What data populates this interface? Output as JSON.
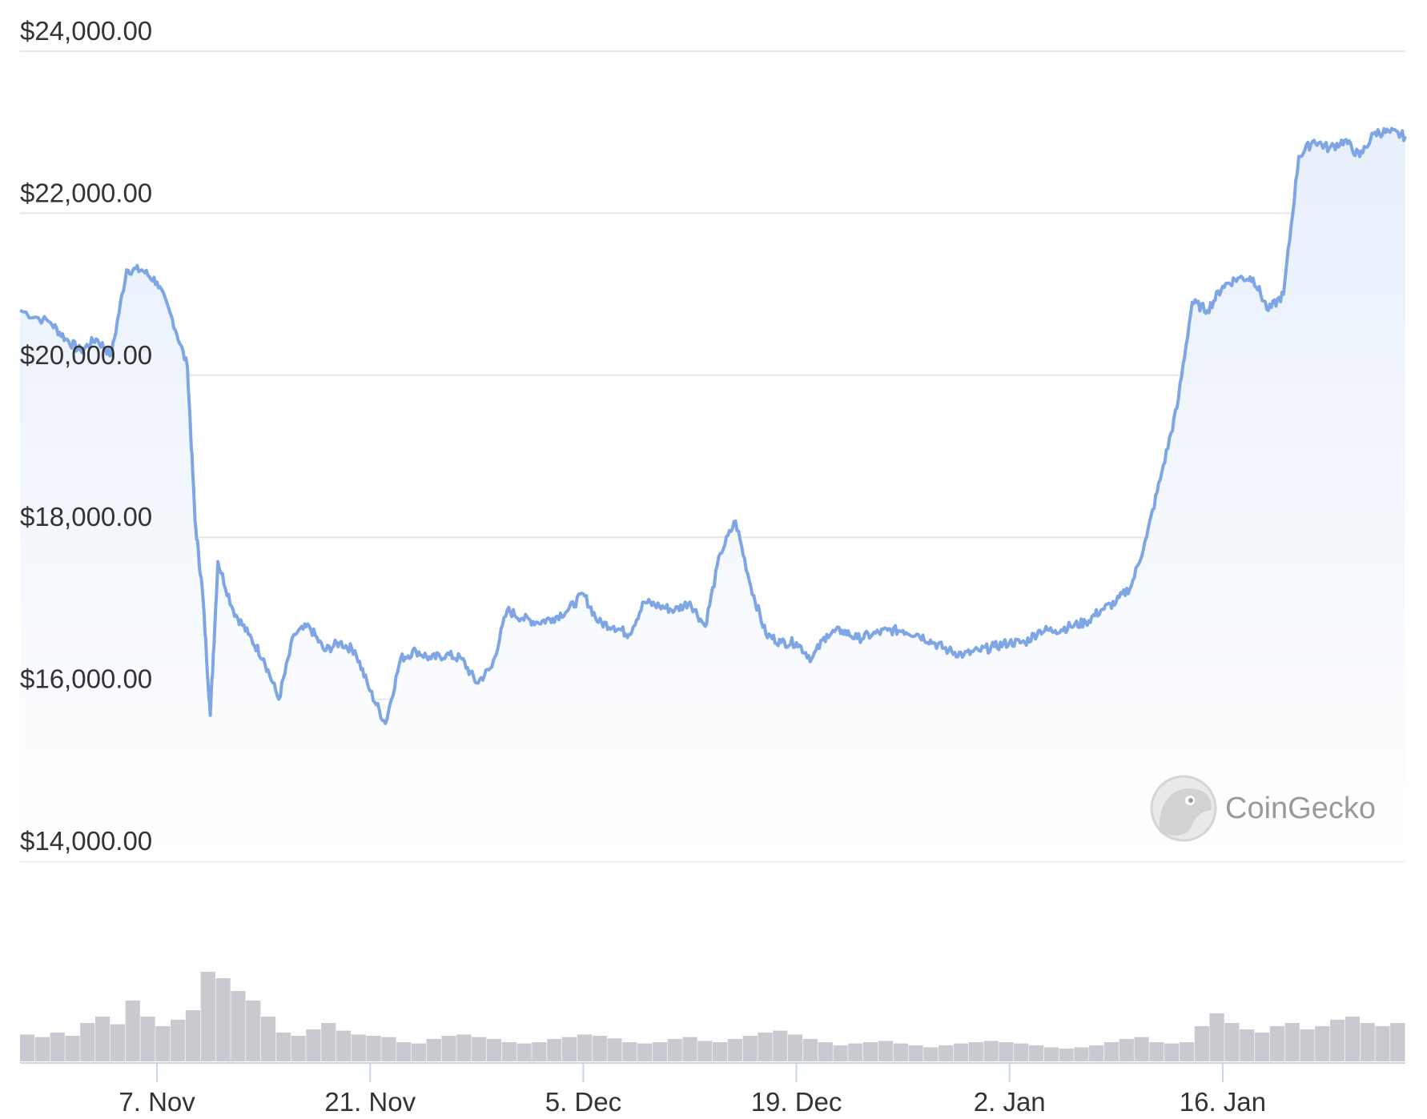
{
  "chart_data": {
    "type": "area",
    "title": "",
    "xlabel": "",
    "ylabel": "",
    "ylim": [
      14000,
      24000
    ],
    "y_ticks": [
      {
        "value": 24000,
        "label": "$24,000.00"
      },
      {
        "value": 22000,
        "label": "$22,000.00"
      },
      {
        "value": 20000,
        "label": "$20,000.00"
      },
      {
        "value": 18000,
        "label": "$18,000.00"
      },
      {
        "value": 16000,
        "label": "$16,000.00"
      },
      {
        "value": 14000,
        "label": "$14,000.00"
      }
    ],
    "x_ticks": [
      {
        "date": "2022-11-07",
        "label": "7. Nov"
      },
      {
        "date": "2022-11-21",
        "label": "21. Nov"
      },
      {
        "date": "2022-12-05",
        "label": "5. Dec"
      },
      {
        "date": "2022-12-19",
        "label": "19. Dec"
      },
      {
        "date": "2023-01-02",
        "label": "2. Jan"
      },
      {
        "date": "2023-01-16",
        "label": "16. Jan"
      }
    ],
    "x_range": [
      "2022-10-29",
      "2023-01-28"
    ],
    "grid": true,
    "colors": {
      "line": "#7ea6e4",
      "area_top": "#e7effb",
      "area_bottom": "#ffffff",
      "grid": "#e6e6e6",
      "volume": "#c9cacf",
      "axis": "#c9d3ea"
    },
    "series": [
      {
        "values": [
          [
            "2022-10-29",
            20800
          ],
          [
            "2022-10-31",
            20650
          ],
          [
            "2022-11-01",
            20450
          ],
          [
            "2022-11-02",
            20300
          ],
          [
            "2022-11-03",
            20450
          ],
          [
            "2022-11-04",
            20250
          ],
          [
            "2022-11-05",
            21300
          ],
          [
            "2022-11-06",
            21300
          ],
          [
            "2022-11-07",
            21150
          ],
          [
            "2022-11-08",
            20700
          ],
          [
            "2022-11-09",
            20100
          ],
          [
            "2022-11-09T12",
            18200
          ],
          [
            "2022-11-10",
            17300
          ],
          [
            "2022-11-10T12",
            15800
          ],
          [
            "2022-11-11",
            17700
          ],
          [
            "2022-11-12",
            17100
          ],
          [
            "2022-11-13",
            16800
          ],
          [
            "2022-11-14",
            16500
          ],
          [
            "2022-11-15",
            16000
          ],
          [
            "2022-11-16",
            16800
          ],
          [
            "2022-11-17",
            16900
          ],
          [
            "2022-11-18",
            16600
          ],
          [
            "2022-11-19",
            16700
          ],
          [
            "2022-11-20",
            16600
          ],
          [
            "2022-11-21",
            16100
          ],
          [
            "2022-11-22",
            15700
          ],
          [
            "2022-11-23",
            16500
          ],
          [
            "2022-11-24",
            16600
          ],
          [
            "2022-11-25",
            16500
          ],
          [
            "2022-11-26",
            16550
          ],
          [
            "2022-11-27",
            16500
          ],
          [
            "2022-11-28",
            16200
          ],
          [
            "2022-11-29",
            16400
          ],
          [
            "2022-11-30",
            17100
          ],
          [
            "2022-12-01",
            17000
          ],
          [
            "2022-12-02",
            16950
          ],
          [
            "2022-12-03",
            17000
          ],
          [
            "2022-12-04",
            17100
          ],
          [
            "2022-12-05",
            17300
          ],
          [
            "2022-12-06",
            16950
          ],
          [
            "2022-12-07",
            16900
          ],
          [
            "2022-12-08",
            16800
          ],
          [
            "2022-12-09",
            17200
          ],
          [
            "2022-12-10",
            17150
          ],
          [
            "2022-12-11",
            17100
          ],
          [
            "2022-12-12",
            17200
          ],
          [
            "2022-12-13",
            16900
          ],
          [
            "2022-12-14",
            17800
          ],
          [
            "2022-12-15",
            18200
          ],
          [
            "2022-12-16",
            17400
          ],
          [
            "2022-12-17",
            16800
          ],
          [
            "2022-12-18",
            16700
          ],
          [
            "2022-12-19",
            16700
          ],
          [
            "2022-12-20",
            16500
          ],
          [
            "2022-12-21",
            16800
          ],
          [
            "2022-12-22",
            16850
          ],
          [
            "2022-12-23",
            16750
          ],
          [
            "2022-12-24",
            16800
          ],
          [
            "2022-12-25",
            16850
          ],
          [
            "2022-12-26",
            16850
          ],
          [
            "2022-12-27",
            16800
          ],
          [
            "2022-12-28",
            16700
          ],
          [
            "2022-12-29",
            16600
          ],
          [
            "2022-12-30",
            16550
          ],
          [
            "2022-12-31",
            16600
          ],
          [
            "2023-01-01",
            16650
          ],
          [
            "2023-01-02",
            16700
          ],
          [
            "2023-01-03",
            16700
          ],
          [
            "2023-01-04",
            16850
          ],
          [
            "2023-01-05",
            16850
          ],
          [
            "2023-01-06",
            16900
          ],
          [
            "2023-01-07",
            16950
          ],
          [
            "2023-01-08",
            17100
          ],
          [
            "2023-01-09",
            17200
          ],
          [
            "2023-01-10",
            17400
          ],
          [
            "2023-01-11",
            18000
          ],
          [
            "2023-01-12",
            18800
          ],
          [
            "2023-01-13",
            19600
          ],
          [
            "2023-01-14",
            20900
          ],
          [
            "2023-01-15",
            20800
          ],
          [
            "2023-01-16",
            21100
          ],
          [
            "2023-01-17",
            21200
          ],
          [
            "2023-01-18",
            21200
          ],
          [
            "2023-01-19",
            20800
          ],
          [
            "2023-01-20",
            21000
          ],
          [
            "2023-01-21",
            22700
          ],
          [
            "2023-01-22",
            22900
          ],
          [
            "2023-01-23",
            22800
          ],
          [
            "2023-01-24",
            22900
          ],
          [
            "2023-01-25",
            22700
          ],
          [
            "2023-01-26",
            23000
          ],
          [
            "2023-01-27",
            23000
          ],
          [
            "2023-01-28",
            22950
          ]
        ]
      }
    ],
    "volume": [
      42,
      38,
      45,
      40,
      60,
      70,
      58,
      95,
      70,
      55,
      65,
      80,
      140,
      130,
      110,
      95,
      70,
      45,
      40,
      50,
      60,
      48,
      42,
      40,
      38,
      30,
      28,
      35,
      40,
      42,
      38,
      35,
      30,
      28,
      30,
      35,
      38,
      42,
      40,
      36,
      30,
      28,
      30,
      35,
      38,
      32,
      30,
      35,
      40,
      45,
      48,
      42,
      35,
      30,
      25,
      28,
      30,
      32,
      28,
      25,
      22,
      25,
      28,
      30,
      32,
      30,
      28,
      25,
      22,
      20,
      22,
      25,
      30,
      35,
      38,
      30,
      28,
      30,
      55,
      75,
      60,
      50,
      45,
      55,
      60,
      50,
      55,
      65,
      70,
      60,
      55,
      60
    ],
    "volume_scale_max": 160,
    "watermark": {
      "text": "CoinGecko"
    }
  }
}
